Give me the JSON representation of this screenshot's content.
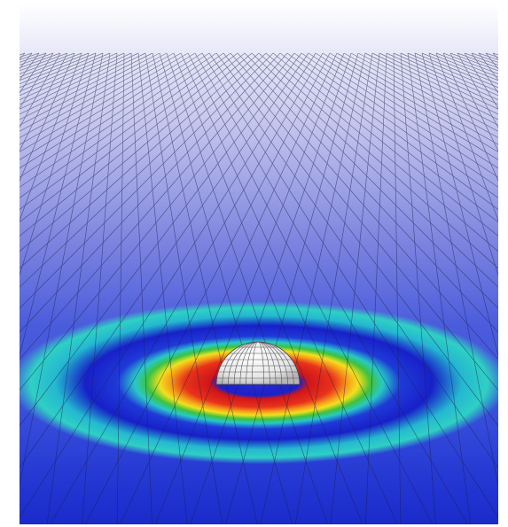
{
  "scene": {
    "subject": "sphere-on-rippled-surface",
    "colors": {
      "background": "#ffffff",
      "sky_top": "#ffffff",
      "sky_mid": "#8d92e0",
      "sky_low": "#3f56d6",
      "mesh_line": "#1a1f4a",
      "sphere": "#eeeeee",
      "sphere_line": "#555555",
      "ring_red": "#e01a10",
      "ring_orange": "#f07a10",
      "ring_yellow": "#f2e21a",
      "ring_green": "#3ec83a",
      "ring_cyan": "#2ad4c8",
      "ring_blue": "#1a2ad8"
    }
  }
}
